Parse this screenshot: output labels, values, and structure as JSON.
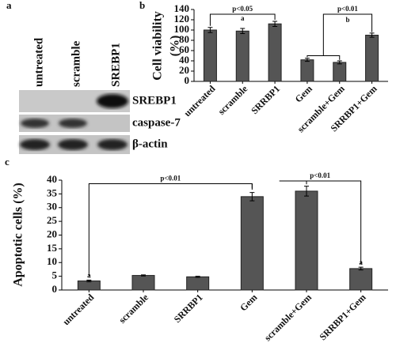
{
  "panels": [
    "a",
    "b",
    "c"
  ],
  "blot": {
    "lanes": [
      "untreated",
      "scramble",
      "SREBP1"
    ],
    "rows": [
      "SREBP1",
      "caspase-7",
      "β-actin"
    ]
  },
  "chart_data": [
    {
      "type": "bar",
      "y_label": [
        "Cell viability",
        "(%)"
      ],
      "categories": [
        "untreated",
        "scramble",
        "SRRBP1",
        "Gem",
        "scramble+Gem",
        "SRRBP1+Gem"
      ],
      "values": [
        100,
        98,
        112,
        42,
        37,
        90
      ],
      "errors": [
        5,
        5,
        5,
        3,
        3,
        4
      ],
      "color": "#555555",
      "ylim": [
        0,
        140
      ],
      "yticks": [
        0,
        20,
        40,
        60,
        80,
        100,
        120,
        140
      ],
      "annotations": [
        "p<0.05",
        "a",
        "p<0.01",
        "b"
      ]
    },
    {
      "type": "bar",
      "y_label": [
        "Apoptotic cells (%)"
      ],
      "categories": [
        "untreated",
        "scramble",
        "SRRBP1",
        "Gem",
        "scramble+Gem",
        "SRRBP1+Gem"
      ],
      "values": [
        3.3,
        5.3,
        4.8,
        34,
        36,
        7.8
      ],
      "errors": [
        0.3,
        0.2,
        0.2,
        1.5,
        1.8,
        0.5
      ],
      "color": "#555555",
      "ylim": [
        0,
        40
      ],
      "yticks": [
        0,
        5,
        10,
        15,
        20,
        25,
        30,
        35,
        40
      ],
      "annotations": [
        "p<0.01",
        "p<0.01",
        "a",
        "a"
      ]
    }
  ]
}
